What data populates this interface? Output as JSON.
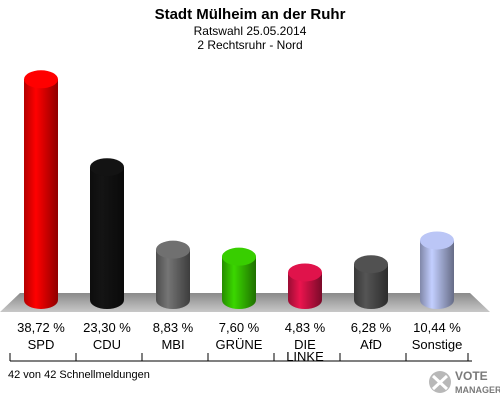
{
  "chart_data": {
    "type": "bar",
    "title": "Stadt Mülheim an der Ruhr",
    "subtitle_lines": [
      "Ratswahl 25.05.2014",
      "2 Rechtsruhr - Nord"
    ],
    "categories": [
      "SPD",
      "CDU",
      "MBI",
      "GRÜNE",
      "DIE LINKE",
      "AfD",
      "Sonstige"
    ],
    "category_lines": [
      [
        "SPD"
      ],
      [
        "CDU"
      ],
      [
        "MBI"
      ],
      [
        "GRÜNE"
      ],
      [
        "DIE",
        "LINKE"
      ],
      [
        "AfD"
      ],
      [
        "Sonstige"
      ]
    ],
    "values": [
      38.72,
      23.3,
      8.83,
      7.6,
      4.83,
      6.28,
      10.44
    ],
    "value_labels": [
      "38,72 %",
      "23,30 %",
      "8,83 %",
      "7,60 %",
      "4,83 %",
      "6,28 %",
      "10,44 %"
    ],
    "colors": [
      "#ee0000",
      "#111111",
      "#666666",
      "#33bb00",
      "#cc1144",
      "#4a4a4a",
      "#aab4e0"
    ],
    "ylim": [
      0,
      40
    ],
    "legend": "none",
    "grid": false
  },
  "footer": {
    "status": "42 von 42 Schnellmeldungen"
  },
  "logo": {
    "text": "VOTE MANAGER",
    "icon": "checkmark-x-icon"
  }
}
